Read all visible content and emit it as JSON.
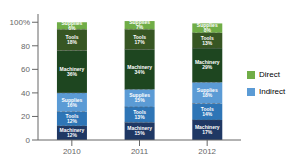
{
  "chart_data": {
    "type": "bar",
    "stacked": true,
    "data_labels": true,
    "grid": false,
    "legend": "right",
    "categories": [
      "2010",
      "2011",
      "2012"
    ],
    "series": [
      {
        "name": "Indirect",
        "color": "#1F3864",
        "values": [
          12,
          15,
          17
        ],
        "value_labels": [
          "Machinery 12%",
          "Machinery 15%",
          "Machinery 17%"
        ]
      },
      {
        "name": "Indirect",
        "color": "#2E75B6",
        "values": [
          12,
          13,
          14
        ],
        "value_labels": [
          "Tools 12%",
          "Tools 13%",
          "Tools 14%"
        ]
      },
      {
        "name": "Indirect",
        "color": "#5B9BD5",
        "values": [
          16,
          15,
          18
        ],
        "value_labels": [
          "Supplies 16%",
          "Supplies 15%",
          "Supplies 18%"
        ]
      },
      {
        "name": "Direct",
        "color": "#1E4620",
        "values": [
          36,
          34,
          29
        ],
        "value_labels": [
          "Machinery 36%",
          "Machinery 34%",
          "Machinery 29%"
        ]
      },
      {
        "name": "Direct",
        "color": "#375623",
        "values": [
          18,
          17,
          13
        ],
        "value_labels": [
          "Tools 18%",
          "Tools 17%",
          "Tools 13%"
        ]
      },
      {
        "name": "Direct",
        "color": "#70AD47",
        "values": [
          6,
          7,
          8
        ],
        "value_labels": [
          "Supplies 6%",
          "Supplies 7%",
          "Supplies 8%"
        ]
      }
    ],
    "ylim": [
      0,
      107
    ],
    "yticks": [
      0,
      20,
      40,
      60,
      80,
      {
        "value": 100,
        "label": "100%"
      }
    ]
  }
}
